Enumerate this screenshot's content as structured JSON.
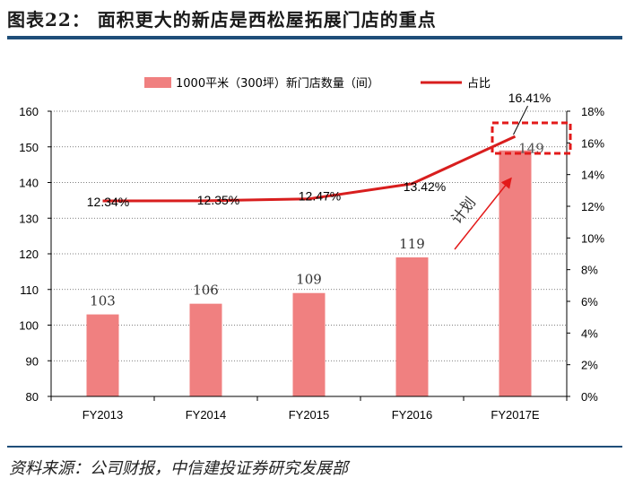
{
  "figure_title": "图表22： 面积更大的新店是西松屋拓展门店的重点",
  "source_note": "资料来源：公司财报，中信建投证券研究发展部",
  "chart_data": {
    "type": "bar",
    "categories": [
      "FY2013",
      "FY2014",
      "FY2015",
      "FY2016",
      "FY2017E"
    ],
    "series": [
      {
        "name": "1000平米（300坪）新门店数量（间）",
        "kind": "bar",
        "axis": "left",
        "values": [
          103,
          106,
          109,
          119,
          149
        ],
        "value_labels": [
          "103",
          "106",
          "109",
          "119",
          "149"
        ]
      },
      {
        "name": "占比",
        "kind": "line",
        "axis": "right",
        "values": [
          12.34,
          12.35,
          12.47,
          13.42,
          16.41
        ],
        "value_labels": [
          "12.34%",
          "12.35%",
          "12.47%",
          "13.42%",
          "16.41%"
        ]
      }
    ],
    "y_left": {
      "min": 80,
      "max": 160,
      "ticks": [
        "80",
        "90",
        "100",
        "110",
        "120",
        "130",
        "140",
        "150",
        "160"
      ]
    },
    "y_right": {
      "min": 0,
      "max": 18,
      "ticks": [
        "0%",
        "2%",
        "4%",
        "6%",
        "8%",
        "10%",
        "12%",
        "14%",
        "16%",
        "18%"
      ]
    },
    "grid": "horizontal dotted",
    "legend_position": "top",
    "annotation": {
      "text": "计划",
      "target": "FY2017E"
    },
    "colors": {
      "bar": "#f08080",
      "line": "#d81e1e",
      "highlight": "#e31a1a",
      "rule": "#1f4e79"
    }
  }
}
